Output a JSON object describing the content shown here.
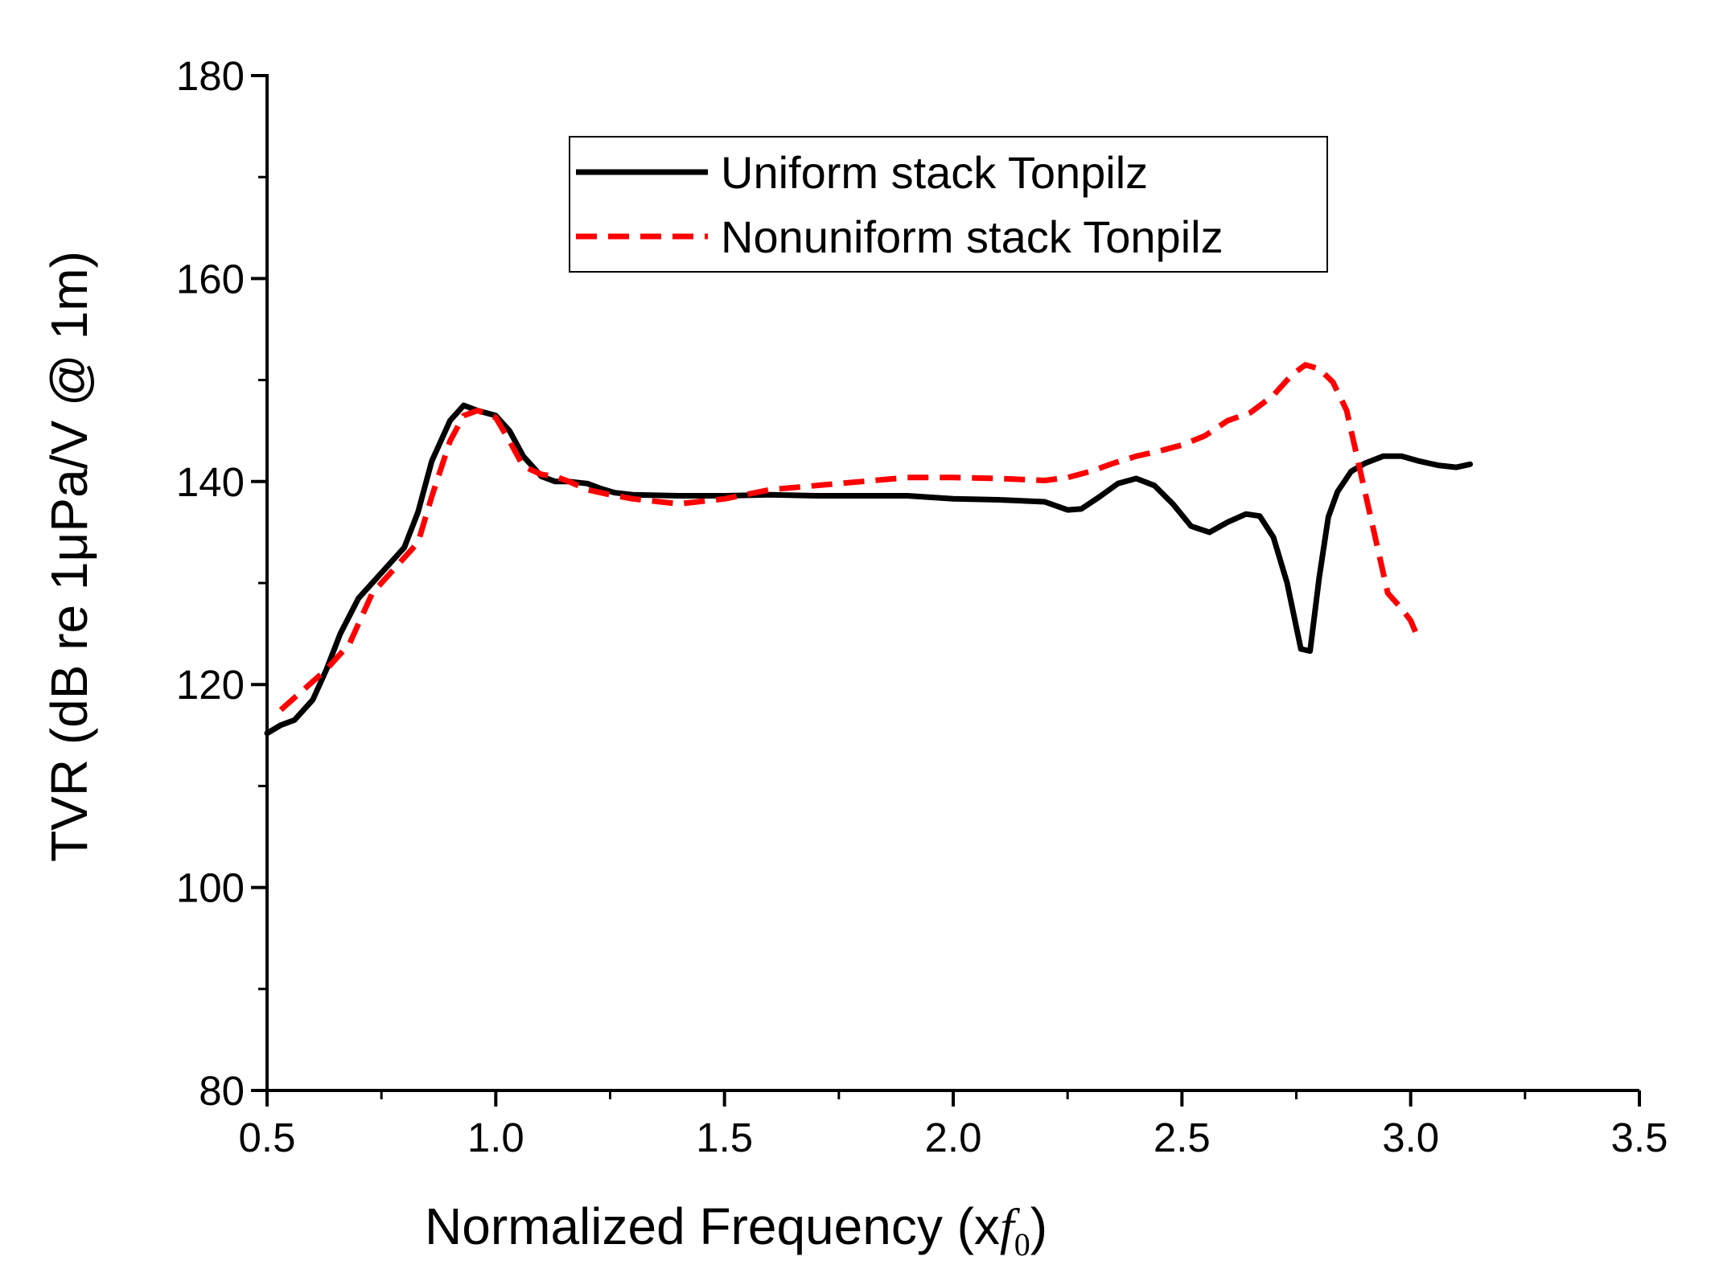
{
  "chart_data": {
    "type": "line",
    "title": "",
    "xlabel_prefix": "Normalized Frequency (x",
    "xlabel_symbol": "f",
    "xlabel_subscript": "0",
    "xlabel_suffix": ")",
    "ylabel": "TVR (dB re 1μPa/V @ 1m)",
    "xlim": [
      0.5,
      3.5
    ],
    "ylim": [
      80,
      180
    ],
    "x_ticks": [
      "0.5",
      "1.0",
      "1.5",
      "2.0",
      "2.5",
      "3.0",
      "3.5"
    ],
    "y_ticks": [
      "80",
      "100",
      "120",
      "140",
      "160",
      "180"
    ],
    "grid": false,
    "legend_position": "top-center",
    "colors": {
      "axis": "#000000",
      "uniform": "#000000",
      "nonuniform": "#ff0000"
    },
    "series": [
      {
        "name": "Uniform stack Tonpilz",
        "style": "solid",
        "x": [
          0.5,
          0.53,
          0.56,
          0.6,
          0.63,
          0.66,
          0.7,
          0.75,
          0.8,
          0.83,
          0.86,
          0.9,
          0.93,
          0.96,
          1.0,
          1.03,
          1.06,
          1.1,
          1.13,
          1.16,
          1.2,
          1.23,
          1.26,
          1.3,
          1.4,
          1.5,
          1.6,
          1.7,
          1.8,
          1.9,
          2.0,
          2.1,
          2.2,
          2.25,
          2.28,
          2.32,
          2.36,
          2.4,
          2.44,
          2.48,
          2.52,
          2.56,
          2.6,
          2.64,
          2.67,
          2.7,
          2.73,
          2.76,
          2.78,
          2.8,
          2.82,
          2.84,
          2.87,
          2.9,
          2.94,
          2.98,
          3.02,
          3.06,
          3.1,
          3.13
        ],
        "y": [
          115.2,
          116.0,
          116.5,
          118.5,
          121.5,
          125.0,
          128.5,
          131.0,
          133.5,
          137.0,
          142.0,
          146.0,
          147.5,
          147.0,
          146.5,
          145.0,
          142.5,
          140.5,
          140.0,
          140.0,
          139.8,
          139.3,
          138.9,
          138.7,
          138.6,
          138.6,
          138.7,
          138.6,
          138.6,
          138.6,
          138.3,
          138.2,
          138.0,
          137.2,
          137.3,
          138.5,
          139.8,
          140.3,
          139.6,
          137.8,
          135.6,
          135.0,
          136.0,
          136.8,
          136.6,
          134.5,
          130.0,
          123.5,
          123.3,
          130.5,
          136.5,
          139.0,
          141.0,
          141.8,
          142.5,
          142.5,
          142.0,
          141.6,
          141.4,
          141.7
        ]
      },
      {
        "name": "Nonuniform stack Tonpilz",
        "style": "dashed",
        "x": [
          0.53,
          0.58,
          0.63,
          0.68,
          0.73,
          0.78,
          0.83,
          0.86,
          0.9,
          0.93,
          0.96,
          1.0,
          1.03,
          1.06,
          1.1,
          1.13,
          1.16,
          1.2,
          1.25,
          1.3,
          1.4,
          1.5,
          1.6,
          1.7,
          1.8,
          1.9,
          2.0,
          2.1,
          2.2,
          2.25,
          2.3,
          2.35,
          2.4,
          2.45,
          2.5,
          2.55,
          2.6,
          2.65,
          2.7,
          2.74,
          2.77,
          2.8,
          2.83,
          2.86,
          2.89,
          2.92,
          2.95,
          2.98,
          3.0,
          3.02
        ],
        "y": [
          117.5,
          119.5,
          121.5,
          124.0,
          129.0,
          131.5,
          134.0,
          138.5,
          144.0,
          146.5,
          147.0,
          146.3,
          144.0,
          141.5,
          140.7,
          140.5,
          140.0,
          139.2,
          138.7,
          138.3,
          137.8,
          138.3,
          139.2,
          139.6,
          140.0,
          140.4,
          140.4,
          140.3,
          140.1,
          140.4,
          141.0,
          141.8,
          142.5,
          143.0,
          143.6,
          144.5,
          146.0,
          146.8,
          148.5,
          150.5,
          151.5,
          151.1,
          149.8,
          147.0,
          141.0,
          135.0,
          129.0,
          127.5,
          126.3,
          124.2
        ]
      }
    ]
  }
}
